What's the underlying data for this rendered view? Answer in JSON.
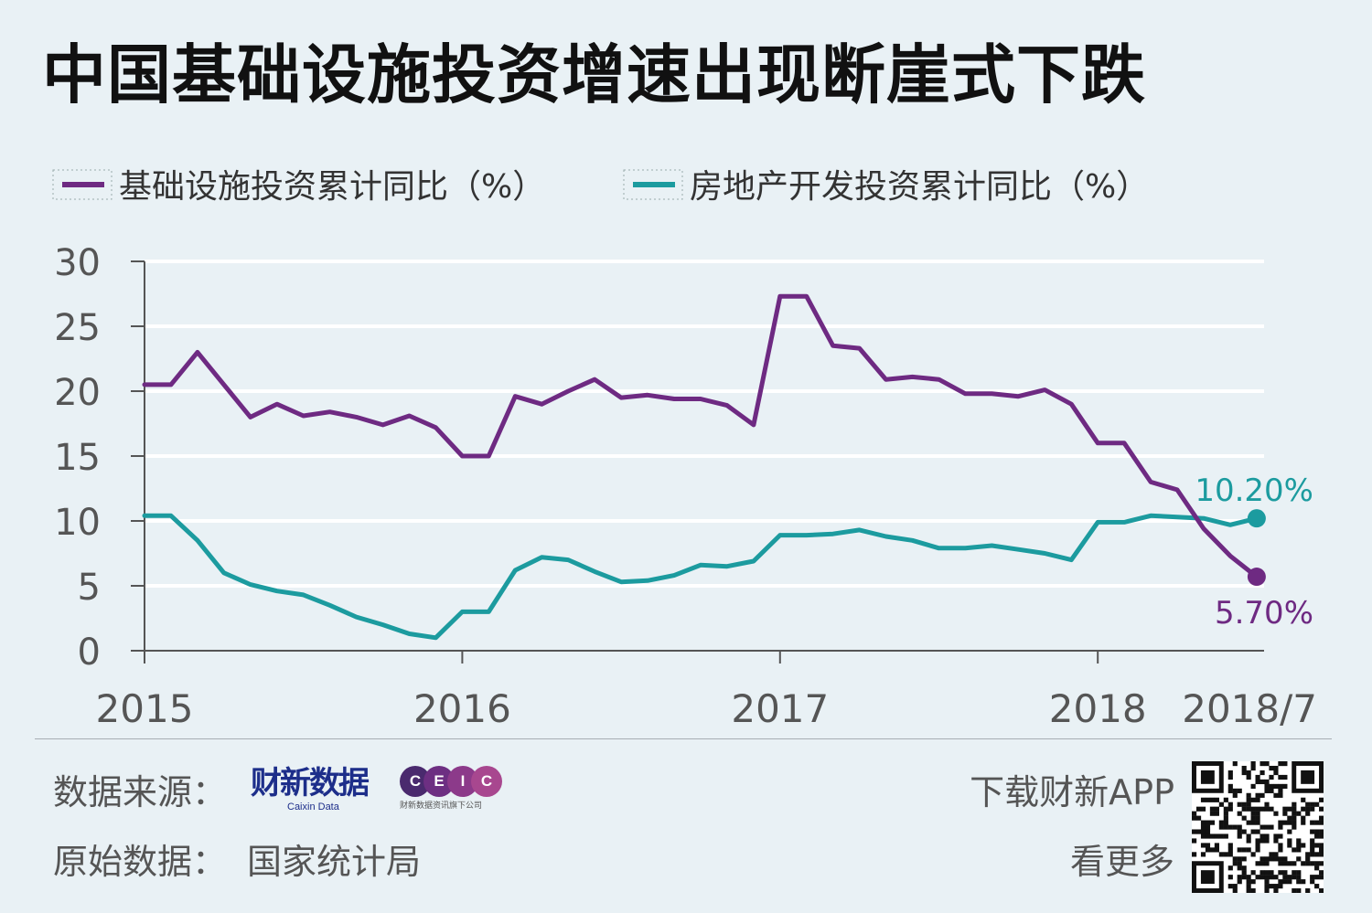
{
  "title": "中国基础设施投资增速出现断崖式下跌",
  "legend": [
    {
      "label": "基础设施投资累计同比（%）",
      "color": "#6e2a82"
    },
    {
      "label": "房地产开发投资累计同比（%）",
      "color": "#1c9b9f"
    }
  ],
  "chart_data": {
    "type": "line",
    "title": "中国基础设施投资增速出现断崖式下跌",
    "x": [
      "2015/1",
      "2015/2",
      "2015/3",
      "2015/4",
      "2015/5",
      "2015/6",
      "2015/7",
      "2015/8",
      "2015/9",
      "2015/10",
      "2015/11",
      "2015/12",
      "2016/1",
      "2016/2",
      "2016/3",
      "2016/4",
      "2016/5",
      "2016/6",
      "2016/7",
      "2016/8",
      "2016/9",
      "2016/10",
      "2016/11",
      "2016/12",
      "2017/1",
      "2017/2",
      "2017/3",
      "2017/4",
      "2017/5",
      "2017/6",
      "2017/7",
      "2017/8",
      "2017/9",
      "2017/10",
      "2017/11",
      "2017/12",
      "2018/1",
      "2018/2",
      "2018/3",
      "2018/4",
      "2018/5",
      "2018/6",
      "2018/7"
    ],
    "x_tick_labels": [
      "2015",
      "2016",
      "2017",
      "2018",
      "2018/7"
    ],
    "series": [
      {
        "name": "基础设施投资累计同比（%）",
        "color": "#6e2a82",
        "values": [
          20.5,
          20.5,
          23,
          20.5,
          18,
          19,
          18.1,
          18.4,
          18,
          17.4,
          18.1,
          17.2,
          15,
          15,
          19.6,
          19,
          20,
          20.9,
          19.5,
          19.7,
          19.4,
          19.4,
          18.9,
          17.4,
          27.3,
          27.3,
          23.5,
          23.3,
          20.9,
          21.1,
          20.9,
          19.8,
          19.8,
          19.6,
          20.1,
          19,
          16,
          16,
          13,
          12.4,
          9.4,
          7.3,
          5.7
        ],
        "end_label": "5.70%"
      },
      {
        "name": "房地产开发投资累计同比（%）",
        "color": "#1c9b9f",
        "values": [
          10.4,
          10.4,
          8.5,
          6,
          5.1,
          4.6,
          4.3,
          3.5,
          2.6,
          2,
          1.3,
          1,
          3,
          3,
          6.2,
          7.2,
          7,
          6.1,
          5.3,
          5.4,
          5.8,
          6.6,
          6.5,
          6.9,
          8.9,
          8.9,
          9,
          9.3,
          8.8,
          8.5,
          7.9,
          7.9,
          8.1,
          7.8,
          7.5,
          7,
          9.9,
          9.9,
          10.4,
          10.3,
          10.2,
          9.7,
          10.2
        ],
        "end_label": "10.20%"
      }
    ],
    "ylim": [
      0,
      30
    ],
    "y_ticks": [
      0,
      5,
      10,
      15,
      20,
      25,
      30
    ],
    "grid": true,
    "legend_position": "top"
  },
  "footer": {
    "source_label": "数据来源：",
    "caixin_logo": "财新数据",
    "caixin_logo_sub": "Caixin Data",
    "ceic_letters": [
      "C",
      "E",
      "I",
      "C"
    ],
    "ceic_colors": [
      "#4a2a6e",
      "#6d2f82",
      "#8c3a8a",
      "#a8478f"
    ],
    "ceic_sub": "财新数据资讯旗下公司",
    "raw_data_label": "原始数据：",
    "raw_data_value": "国家统计局",
    "app_text": "下载财新APP",
    "more_text": "看更多",
    "qr_icon": "qr-code-icon"
  }
}
